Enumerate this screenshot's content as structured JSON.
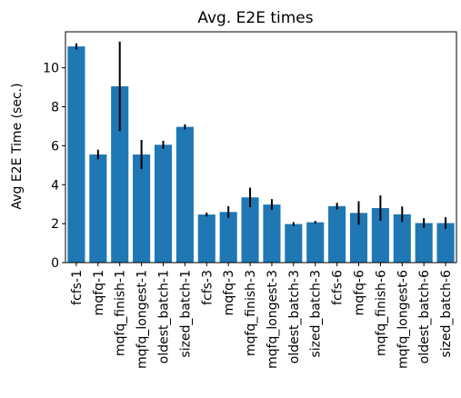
{
  "chart_data": {
    "type": "bar",
    "title": "Avg. E2E times",
    "xlabel": "",
    "ylabel": "Avg E2E Time (sec.)",
    "ylim": [
      0,
      11.85
    ],
    "yticks": [
      0,
      2,
      4,
      6,
      8,
      10
    ],
    "grid": false,
    "bar_color": "#1f77b4",
    "error_color": "#000000",
    "categories": [
      "fcfs-1",
      "mqfq-1",
      "mqfq_finish-1",
      "mqfq_longest-1",
      "oldest_batch-1",
      "sized_batch-1",
      "fcfs-3",
      "mqfq-3",
      "mqfq_finish-3",
      "mqfq_longest-3",
      "oldest_batch-3",
      "sized_batch-3",
      "fcfs-6",
      "mqfq-6",
      "mqfq_finish-6",
      "mqfq_longest-6",
      "oldest_batch-6",
      "sized_batch-6"
    ],
    "values": [
      11.1,
      5.55,
      9.05,
      5.55,
      6.05,
      6.97,
      2.47,
      2.6,
      3.35,
      2.98,
      1.98,
      2.07,
      2.9,
      2.55,
      2.8,
      2.48,
      2.03,
      2.03
    ],
    "errors": [
      0.15,
      0.25,
      2.3,
      0.75,
      0.2,
      0.13,
      0.1,
      0.3,
      0.5,
      0.28,
      0.1,
      0.07,
      0.17,
      0.6,
      0.65,
      0.4,
      0.25,
      0.3
    ]
  }
}
